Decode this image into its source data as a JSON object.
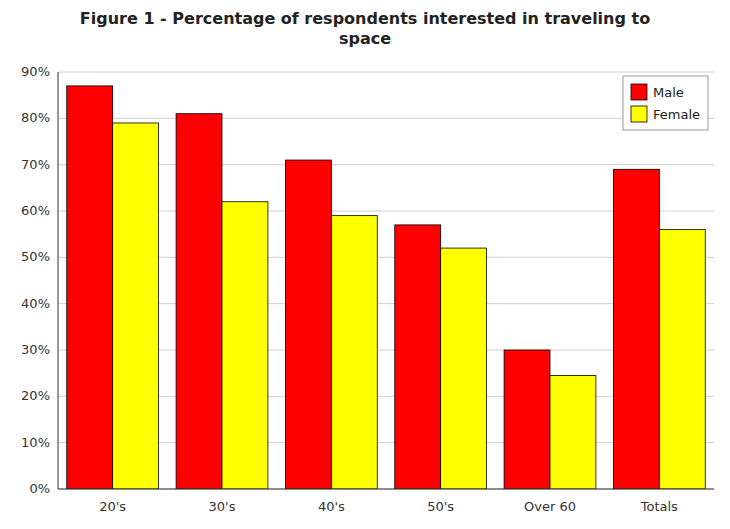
{
  "chart_data": {
    "type": "bar",
    "title": "Figure 1 - Percentage of respondents interested in traveling to\nspace",
    "categories": [
      "20's",
      "30's",
      "40's",
      "50's",
      "Over 60",
      "Totals"
    ],
    "series": [
      {
        "name": "Male",
        "color": "#FF0000",
        "values": [
          0.87,
          0.81,
          0.71,
          0.57,
          0.3,
          0.69
        ]
      },
      {
        "name": "Female",
        "color": "#FFFF00",
        "values": [
          0.79,
          0.62,
          0.59,
          0.52,
          0.245,
          0.56
        ]
      }
    ],
    "ylim": [
      0,
      0.9
    ],
    "yticks": [
      {
        "value": 0.0,
        "label": "0%"
      },
      {
        "value": 0.1,
        "label": "10%"
      },
      {
        "value": 0.2,
        "label": "20%"
      },
      {
        "value": 0.3,
        "label": "30%"
      },
      {
        "value": 0.4,
        "label": "40%"
      },
      {
        "value": 0.5,
        "label": "50%"
      },
      {
        "value": 0.6,
        "label": "60%"
      },
      {
        "value": 0.7,
        "label": "70%"
      },
      {
        "value": 0.8,
        "label": "80%"
      },
      {
        "value": 0.9,
        "label": "90%"
      }
    ],
    "grid": true,
    "legend": "upper right"
  }
}
